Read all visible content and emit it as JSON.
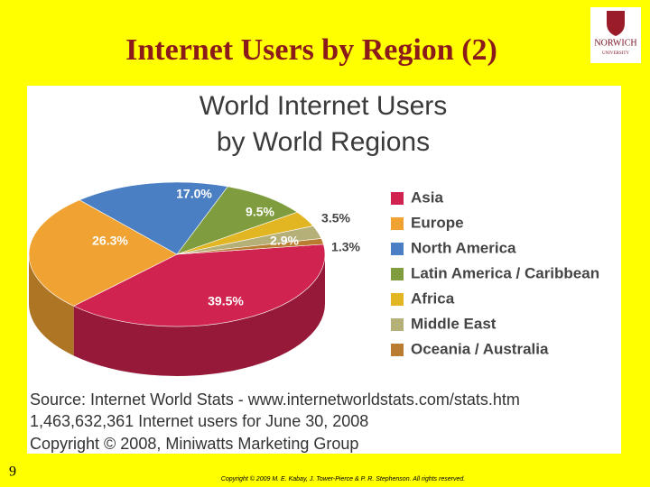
{
  "slide": {
    "title": "Internet Users by Region (2)",
    "number": "9",
    "footer": "Copyright © 2009 M. E. Kabay, J. Tower-Pierce & P. R. Stephenson.  All rights reserved.",
    "logo": {
      "name": "NORWICH",
      "sub": "UNIVERSITY"
    }
  },
  "chart_data": {
    "type": "pie",
    "title": [
      "World Internet Users",
      "by World Regions"
    ],
    "categories": [
      "Asia",
      "Europe",
      "North America",
      "Latin America / Caribbean",
      "Africa",
      "Middle East",
      "Oceania / Australia"
    ],
    "values": [
      39.5,
      26.3,
      17.0,
      9.5,
      3.5,
      2.9,
      1.3
    ],
    "value_labels": [
      "39.5%",
      "26.3%",
      "17.0%",
      "9.5%",
      "3.5%",
      "2.9%",
      "1.3%"
    ],
    "colors": [
      "#d0234f",
      "#f0a232",
      "#4b7fc4",
      "#7f9d3e",
      "#e2b622",
      "#b5b078",
      "#b97c30"
    ],
    "legend": "right",
    "source": [
      "Source: Internet World Stats -  www.internetworldstats.com/stats.htm",
      "1,463,632,361 Internet users for June 30, 2008",
      "Copyright © 2008, Miniwatts Marketing Group"
    ]
  }
}
